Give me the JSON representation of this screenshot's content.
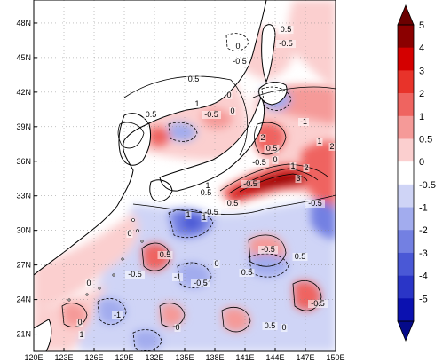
{
  "map": {
    "lon_range": [
      120,
      150
    ],
    "lat_range": [
      19.5,
      50
    ],
    "x_ticks": [
      "120E",
      "123E",
      "126E",
      "129E",
      "132E",
      "135E",
      "138E",
      "141E",
      "144E",
      "147E",
      "150E"
    ],
    "y_ticks": [
      "21N",
      "24N",
      "27N",
      "30N",
      "33N",
      "36N",
      "39N",
      "42N",
      "45N",
      "48N"
    ],
    "grid": "dotted"
  },
  "colorbar": {
    "labels": [
      "5",
      "4",
      "3",
      "2",
      "1",
      "0.5",
      "0",
      "-0.5",
      "-1",
      "-2",
      "-3",
      "-4",
      "-5"
    ],
    "colors": [
      "#8b0000",
      "#d40000",
      "#e8332a",
      "#ef6460",
      "#f59a98",
      "#fbcfcf",
      "#ffffff",
      "#cfd4f6",
      "#a2acee",
      "#7380e2",
      "#4a58d6",
      "#2a35c7",
      "#0b11b0"
    ],
    "positive_ramp": [
      "#fbcfcf",
      "#f59a98",
      "#ef6460",
      "#e8332a",
      "#d40000",
      "#8b0000"
    ],
    "negative_ramp": [
      "#cfd4f6",
      "#a2acee",
      "#7380e2",
      "#4a58d6",
      "#2a35c7",
      "#0b11b0"
    ]
  },
  "contour_labels": [
    "0.5",
    "-0.5",
    "0",
    "-0.5",
    "0.5",
    "0",
    "1",
    "0",
    "-0.5",
    "0.5",
    "2",
    "0.5",
    "-1",
    "1",
    "2",
    "-0.5",
    "0",
    "1",
    "2",
    "3",
    "-0.5",
    "1",
    "0.5",
    "-0.5",
    "1",
    "0.5",
    "0",
    "0.5",
    "-0.5",
    "-1",
    "0",
    "-0.5",
    "0.5",
    "-0.5",
    "0",
    "0.5",
    "-1",
    "1",
    "0",
    "-0.5",
    "0.5",
    "0",
    "0",
    "-0.5",
    "1"
  ]
}
